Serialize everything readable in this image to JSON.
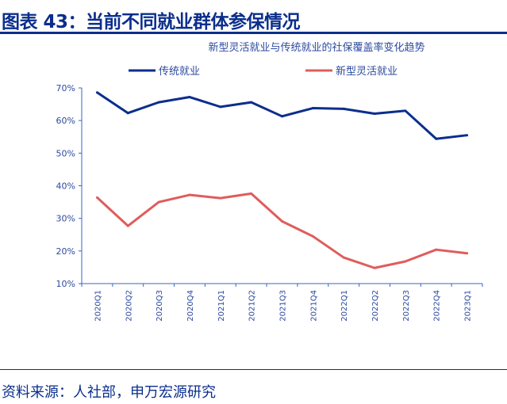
{
  "header": {
    "title": "图表 43：当前不同就业群体参保情况"
  },
  "footer": {
    "source": "资料来源：人社部，申万宏源研究"
  },
  "chart_data": {
    "type": "line",
    "title": "新型灵活就业与传统就业的社保覆盖率变化趋势",
    "xlabel": "",
    "ylabel": "",
    "categories": [
      "2020Q1",
      "2020Q2",
      "2020Q3",
      "2020Q4",
      "2021Q1",
      "2021Q2",
      "2021Q3",
      "2021Q4",
      "2022Q1",
      "2022Q2",
      "2022Q3",
      "2022Q4",
      "2023Q1"
    ],
    "ylim": [
      10,
      70
    ],
    "yticks": [
      "10%",
      "20%",
      "30%",
      "40%",
      "50%",
      "60%",
      "70%"
    ],
    "grid": false,
    "legend": "top",
    "series": [
      {
        "name": "传统就业",
        "color": "#0b2e8c",
        "values": [
          68.6,
          62.3,
          65.6,
          67.2,
          64.2,
          65.6,
          61.3,
          63.8,
          63.6,
          62.1,
          63.0,
          54.4,
          55.5
        ]
      },
      {
        "name": "新型灵活就业",
        "color": "#e05c5c",
        "values": [
          36.4,
          27.7,
          35.0,
          37.2,
          36.2,
          37.6,
          29.1,
          24.5,
          18.0,
          14.8,
          16.8,
          20.4,
          19.3
        ]
      }
    ]
  }
}
